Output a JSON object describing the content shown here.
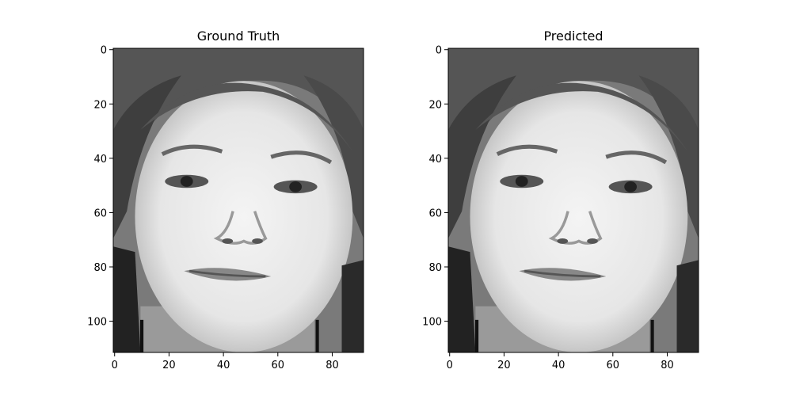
{
  "chart_data": [
    {
      "type": "image",
      "title": "Ground Truth",
      "xlim": [
        -0.5,
        91.5
      ],
      "ylim": [
        111.5,
        -0.5
      ],
      "xticks": [
        0,
        20,
        40,
        60,
        80
      ],
      "yticks": [
        0,
        20,
        40,
        60,
        80,
        100
      ]
    },
    {
      "type": "image",
      "title": "Predicted",
      "xlim": [
        -0.5,
        91.5
      ],
      "ylim": [
        111.5,
        -0.5
      ],
      "xticks": [
        0,
        20,
        40,
        60,
        80
      ],
      "yticks": [
        0,
        20,
        40,
        60,
        80,
        100
      ]
    }
  ]
}
